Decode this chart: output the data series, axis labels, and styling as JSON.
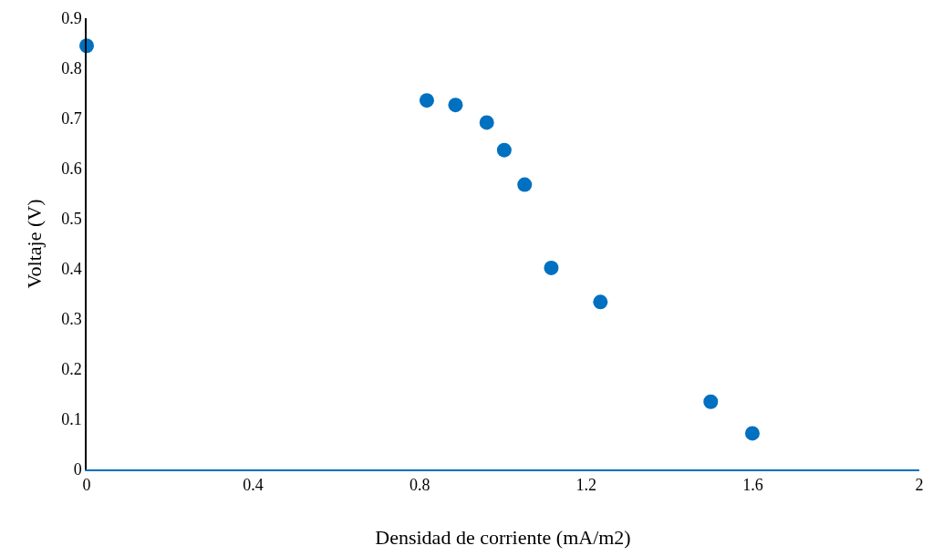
{
  "chart_data": {
    "type": "scatter",
    "xlabel": "Densidad de corriente (mA/m2)",
    "ylabel": "Voltaje (V)",
    "x": [
      0,
      0.817,
      0.886,
      0.961,
      1.003,
      1.052,
      1.116,
      1.234,
      1.499,
      1.599
    ],
    "series": [
      {
        "color": "#0070c0",
        "values": [
          0.845,
          0.736,
          0.727,
          0.692,
          0.637,
          0.568,
          0.402,
          0.334,
          0.135,
          0.072
        ]
      }
    ],
    "xlim": [
      0,
      2
    ],
    "xticks": [
      0,
      0.4,
      0.8,
      1.2,
      1.6,
      2
    ],
    "ylim": [
      0,
      0.9
    ],
    "yticks": [
      0,
      0.1,
      0.2,
      0.3,
      0.4,
      0.5,
      0.6,
      0.7,
      0.8,
      0.9
    ],
    "grid": false,
    "legend": false,
    "marker": "circle"
  }
}
